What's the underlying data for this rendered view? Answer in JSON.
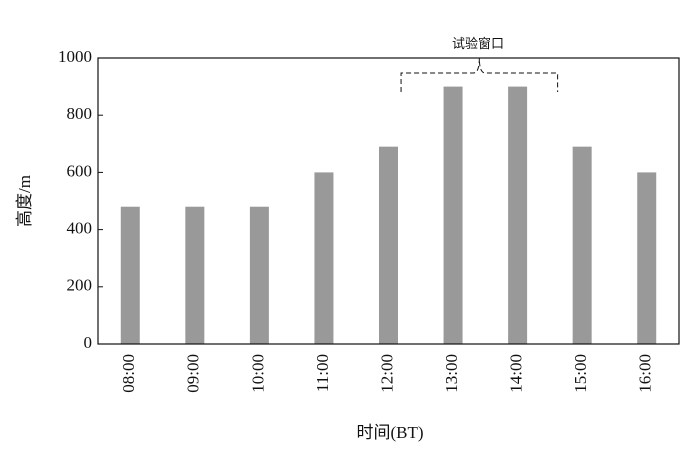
{
  "chart_data": {
    "type": "bar",
    "categories": [
      "08:00",
      "09:00",
      "10:00",
      "11:00",
      "12:00",
      "13:00",
      "14:00",
      "15:00",
      "16:00"
    ],
    "values": [
      480,
      480,
      480,
      600,
      690,
      900,
      900,
      690,
      600
    ],
    "color": "#999999",
    "ylim": [
      0,
      1000
    ],
    "yticks": [
      0,
      200,
      400,
      600,
      800,
      1000
    ],
    "x_label": "时间(BT)",
    "y_label": "高度/m",
    "annotation": "试验窗口"
  }
}
